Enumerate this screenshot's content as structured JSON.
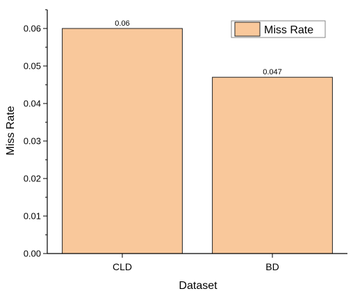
{
  "chart_data": {
    "type": "bar",
    "categories": [
      "CLD",
      "BD"
    ],
    "series": [
      {
        "name": "Miss Rate",
        "values": [
          0.06,
          0.047
        ],
        "value_labels": [
          "0.06",
          "0.047"
        ],
        "color": "#f9c89b"
      }
    ],
    "title": "",
    "xlabel": "Dataset",
    "ylabel": "Miss Rate",
    "ylim": [
      0,
      0.065
    ],
    "yticks": [
      0.0,
      0.01,
      0.02,
      0.03,
      0.04,
      0.05,
      0.06
    ],
    "ytick_labels": [
      "0.00",
      "0.01",
      "0.02",
      "0.03",
      "0.04",
      "0.05",
      "0.06"
    ],
    "grid": false,
    "legend_position": "top-right",
    "colors": {
      "bar_fill": "#f9c89b",
      "bar_stroke": "#222222",
      "axis": "#000000"
    }
  }
}
